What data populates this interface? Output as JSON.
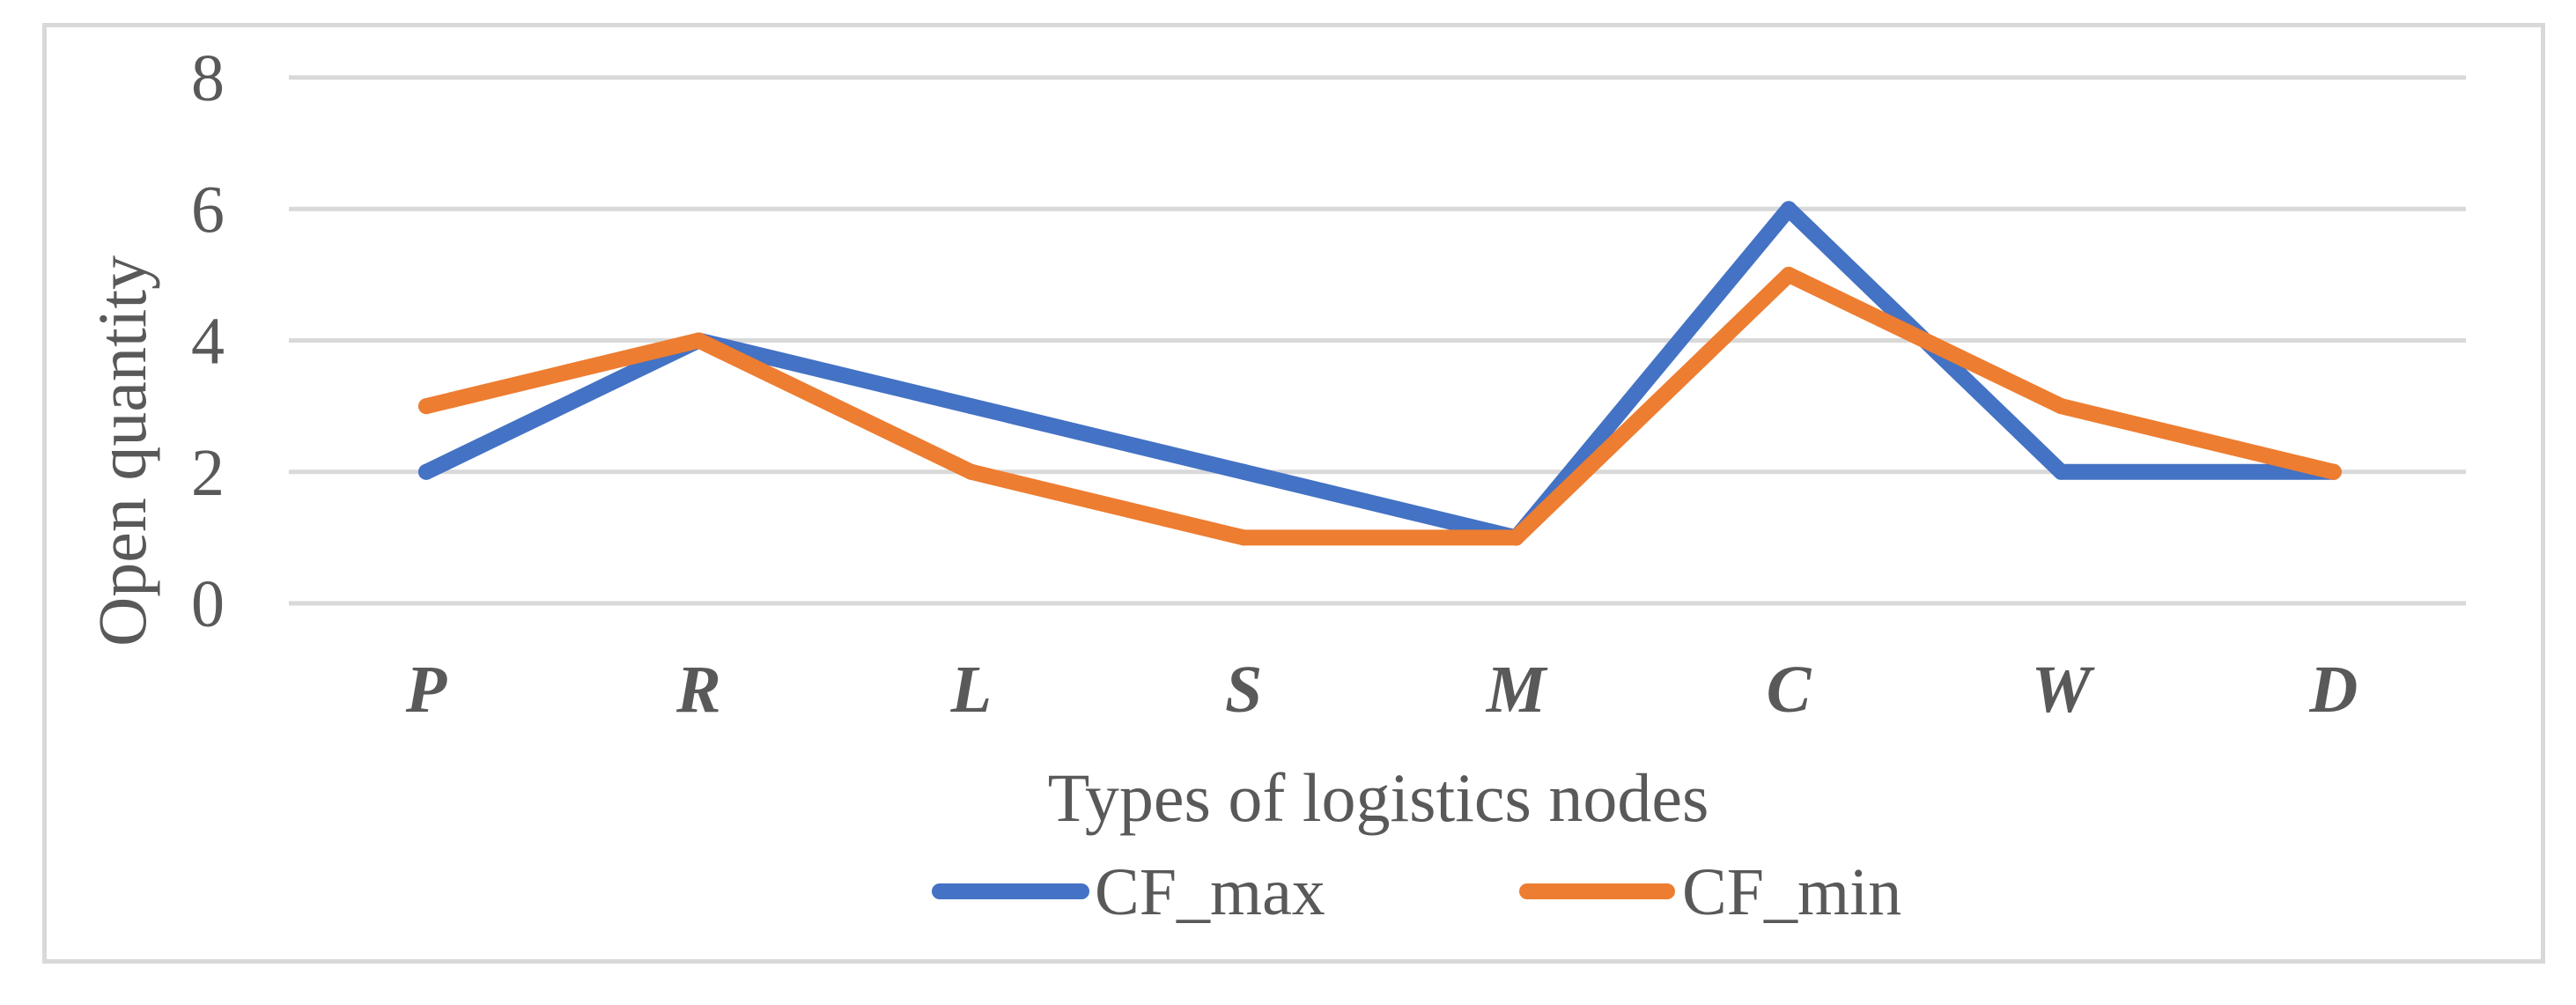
{
  "chart_data": {
    "type": "line",
    "title": "",
    "xlabel": "Types of logistics nodes",
    "ylabel": "Open quantity",
    "categories": [
      "P",
      "R",
      "L",
      "S",
      "M",
      "C",
      "W",
      "D"
    ],
    "ylim": [
      0,
      8
    ],
    "yticks": [
      0,
      2,
      4,
      6,
      8
    ],
    "grid": true,
    "legend_position": "bottom",
    "series": [
      {
        "name": "CF_max",
        "color": "#4472c4",
        "values": [
          2,
          4,
          3,
          2,
          1,
          6,
          2,
          2
        ]
      },
      {
        "name": "CF_min",
        "color": "#ed7d31",
        "values": [
          3,
          4,
          2,
          1,
          1,
          5,
          3,
          2
        ]
      }
    ]
  }
}
